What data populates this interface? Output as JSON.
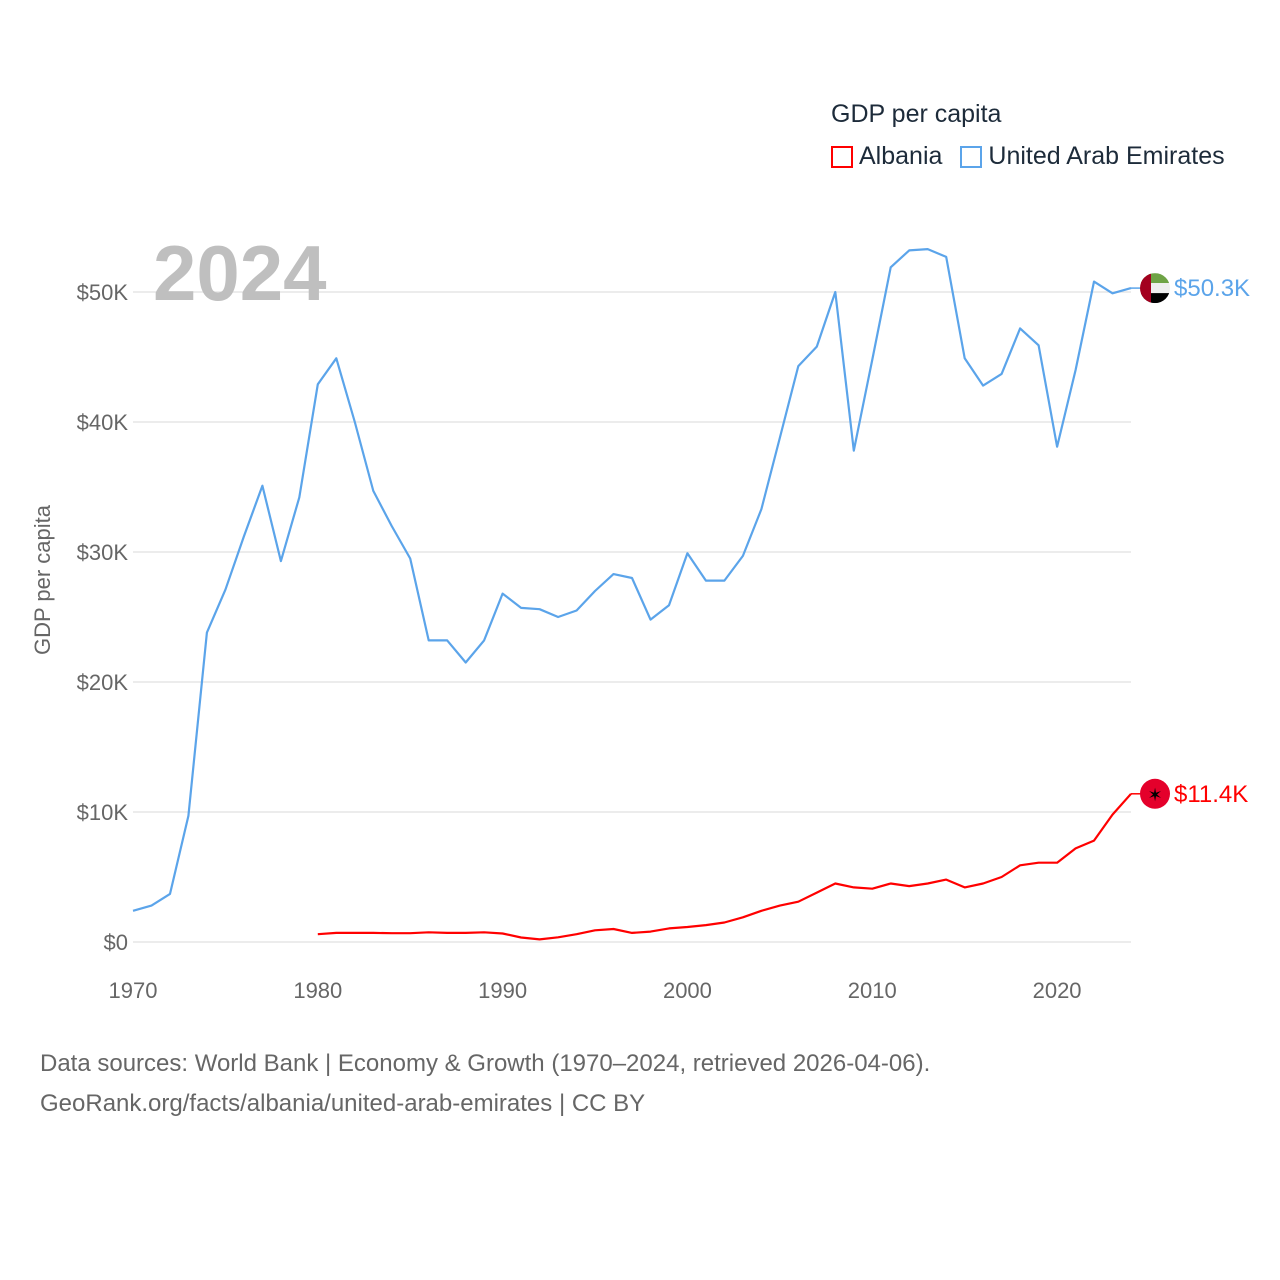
{
  "chart_data": {
    "type": "line",
    "title": "GDP per capita",
    "ylabel": "GDP per capita",
    "xlabel": "",
    "year_label": "2024",
    "xlim": [
      1970,
      2024
    ],
    "ylim": [
      0,
      55000
    ],
    "x_ticks": [
      "1970",
      "1980",
      "1990",
      "2000",
      "2010",
      "2020"
    ],
    "y_ticks": [
      "$0",
      "$10K",
      "$20K",
      "$30K",
      "$40K",
      "$50K"
    ],
    "grid": true,
    "legend_position": "top-right",
    "series": [
      {
        "name": "Albania",
        "color": "#ff0000",
        "end_label": "$11.4K",
        "flag": "albania-flag",
        "start_year": 1980,
        "values": [
          600,
          700,
          700,
          700,
          680,
          680,
          750,
          700,
          700,
          750,
          650,
          350,
          200,
          360,
          600,
          900,
          1000,
          700,
          800,
          1050,
          1150,
          1300,
          1500,
          1900,
          2400,
          2800,
          3100,
          3800,
          4500,
          4200,
          4100,
          4500,
          4300,
          4500,
          4800,
          4200,
          4500,
          5000,
          5900,
          6100,
          6100,
          7200,
          7800,
          9800,
          11400
        ]
      },
      {
        "name": "United Arab Emirates",
        "color": "#5ba4ea",
        "end_label": "$50.3K",
        "flag": "uae-flag",
        "start_year": 1970,
        "values": [
          2400,
          2800,
          3700,
          9700,
          23800,
          27100,
          31200,
          35100,
          29300,
          34200,
          42900,
          44900,
          40000,
          34700,
          32000,
          29500,
          23200,
          23200,
          21500,
          23200,
          26800,
          25700,
          25600,
          25000,
          25500,
          27000,
          28300,
          28000,
          24800,
          25900,
          29900,
          27800,
          27800,
          29700,
          33300,
          38800,
          44300,
          45800,
          50000,
          37800,
          44800,
          51900,
          53200,
          53300,
          52700,
          44900,
          42800,
          43700,
          47200,
          45900,
          38100,
          44000,
          50800,
          49900,
          50300
        ]
      }
    ]
  },
  "footer": {
    "line1": "Data sources: World Bank | Economy & Growth (1970–2024, retrieved 2026-04-06).",
    "line2": "GeoRank.org/facts/albania/united-arab-emirates | CC BY"
  }
}
